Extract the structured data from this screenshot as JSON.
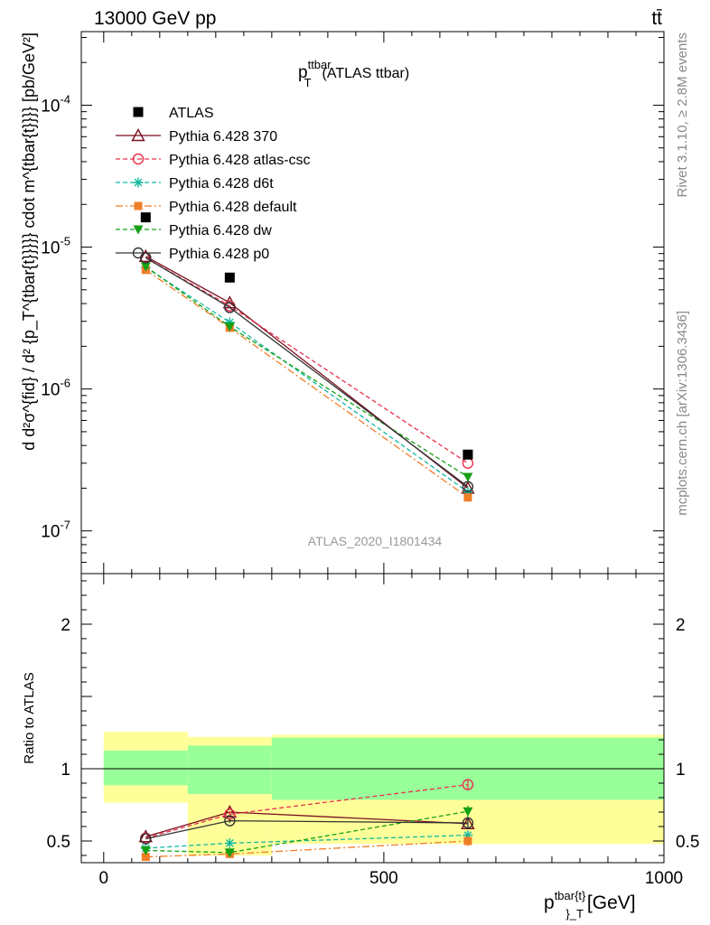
{
  "header": {
    "left": "13000 GeV pp",
    "right": "tt̄",
    "side_top": "Rivet 3.1.10, ≥ 2.8M events",
    "side_bottom": "mcplots.cern.ch [arXiv:1306.3436]"
  },
  "chart_data": [
    {
      "type": "line",
      "title": "p_T^{ttbar} (ATLAS ttbar)",
      "title_main": "p",
      "title_sup": "ttbar",
      "title_sub": "T",
      "title_rest": "(ATLAS ttbar)",
      "ylabel": "d d²σ^{fid} / d² {p_T^{tbar{t}}}}} cdot m^{tbar{t}}}} [pb/GeV²]",
      "ylabel_unit": "cdot m^{tbar{t}}}} [pb/GeV²]",
      "watermark": "ATLAS_2020_I1801434",
      "yscale": "log",
      "ylim": [
        5e-08,
        0.00033
      ],
      "xlim": [
        -40,
        1000
      ],
      "yticks": [
        "10^{-7}",
        "10^{-6}",
        "10^{-5}",
        "10^{-4}"
      ],
      "legend_position": "top-left",
      "data": {
        "name": "ATLAS",
        "color": "#000000",
        "points": [
          {
            "x": 75,
            "y": 1.62e-05
          },
          {
            "x": 225,
            "y": 6.1e-06
          },
          {
            "x": 650,
            "y": 3.45e-07
          }
        ]
      },
      "series": [
        {
          "name": "Pythia 6.428 370",
          "color": "#7a0f1f",
          "dash": "solid",
          "marker": "triangle-open",
          "x": [
            75,
            225,
            650
          ],
          "y": [
            8.6e-06,
            4.05e-06,
            2e-07
          ]
        },
        {
          "name": "Pythia 6.428 atlas-csc",
          "color": "#e8304f",
          "dash": "dashed",
          "marker": "circle-open",
          "x": [
            75,
            225,
            650
          ],
          "y": [
            8.4e-06,
            3.85e-06,
            3e-07
          ]
        },
        {
          "name": "Pythia 6.428 d6t",
          "color": "#12b8a0",
          "dash": "dashed",
          "marker": "star",
          "x": [
            75,
            225,
            650
          ],
          "y": [
            7.2e-06,
            2.95e-06,
            1.88e-07
          ]
        },
        {
          "name": "Pythia 6.428 default",
          "color": "#f07e26",
          "dash": "dashdot",
          "marker": "square-filled",
          "x": [
            75,
            225,
            650
          ],
          "y": [
            6.9e-06,
            2.7e-06,
            1.72e-07
          ]
        },
        {
          "name": "Pythia 6.428 dw",
          "color": "#14a014",
          "dash": "dashed",
          "marker": "triangle-down-filled",
          "x": [
            75,
            225,
            650
          ],
          "y": [
            7.3e-06,
            2.75e-06,
            2.4e-07
          ]
        },
        {
          "name": "Pythia 6.428 p0",
          "color": "#333333",
          "dash": "solid",
          "marker": "circle-open",
          "x": [
            75,
            225,
            650
          ],
          "y": [
            8.4e-06,
            3.75e-06,
            2.05e-07
          ]
        }
      ]
    },
    {
      "type": "line",
      "ylabel": "Ratio to ATLAS",
      "xlabel": "p_T^{tbar{t}}} [GeV]",
      "xlabel_main": "p",
      "xlabel_sup": "tbar{t}",
      "xlabel_sub": "}_T",
      "xlabel_unit": "[GeV]",
      "ylim": [
        0.35,
        2.35
      ],
      "xlim": [
        -40,
        1000
      ],
      "xticks": [
        0,
        500,
        1000
      ],
      "yticks": [
        0.5,
        1,
        2
      ],
      "reference_line": 1,
      "bands": [
        {
          "x0": 0,
          "x1": 150,
          "yellow": [
            0.765,
            1.255
          ],
          "green": [
            0.885,
            1.125
          ]
        },
        {
          "x0": 150,
          "x1": 300,
          "yellow": [
            0.4,
            1.22
          ],
          "green": [
            0.825,
            1.16
          ]
        },
        {
          "x0": 300,
          "x1": 1000,
          "yellow": [
            0.48,
            1.235
          ],
          "green": [
            0.785,
            1.215
          ]
        }
      ],
      "series": [
        {
          "name": "Pythia 6.428 370",
          "color": "#7a0f1f",
          "dash": "solid",
          "marker": "triangle-open",
          "x": [
            75,
            225,
            650
          ],
          "y": [
            0.53,
            0.7,
            0.62
          ]
        },
        {
          "name": "Pythia 6.428 atlas-csc",
          "color": "#e8304f",
          "dash": "dashed",
          "marker": "circle-open",
          "x": [
            75,
            225,
            650
          ],
          "y": [
            0.52,
            0.685,
            0.89
          ],
          "err": [
            0,
            0.02,
            0.035
          ]
        },
        {
          "name": "Pythia 6.428 d6t",
          "color": "#12b8a0",
          "dash": "dashed",
          "marker": "star",
          "x": [
            75,
            225,
            650
          ],
          "y": [
            0.45,
            0.485,
            0.54
          ],
          "err": [
            0,
            0.02,
            0.03
          ]
        },
        {
          "name": "Pythia 6.428 default",
          "color": "#f07e26",
          "dash": "dashdot",
          "marker": "square-filled",
          "x": [
            75,
            225,
            650
          ],
          "y": [
            0.39,
            0.41,
            0.5
          ],
          "err": [
            0,
            0.015,
            0.035
          ]
        },
        {
          "name": "Pythia 6.428 dw",
          "color": "#14a014",
          "dash": "dashed",
          "marker": "triangle-down-filled",
          "x": [
            75,
            225,
            650
          ],
          "y": [
            0.435,
            0.42,
            0.705
          ],
          "err": [
            0,
            0.015,
            0.04
          ]
        },
        {
          "name": "Pythia 6.428 p0",
          "color": "#333333",
          "dash": "solid",
          "marker": "circle-open",
          "x": [
            75,
            225,
            650
          ],
          "y": [
            0.515,
            0.64,
            0.625
          ],
          "err": [
            0,
            0.015,
            0.035
          ]
        }
      ]
    }
  ],
  "colors": {
    "band_yellow": "#ffff99",
    "band_green": "#99ff99"
  }
}
